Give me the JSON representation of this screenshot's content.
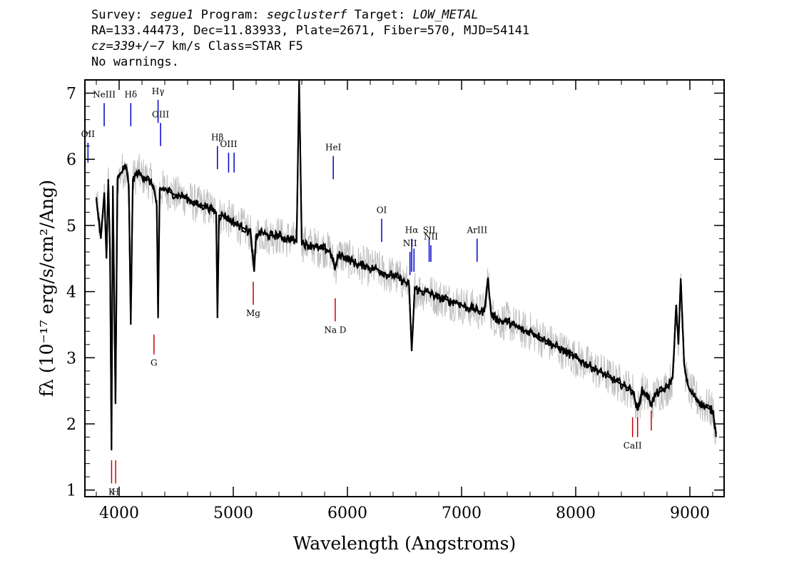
{
  "header": {
    "line1": {
      "survey_label": "Survey:",
      "survey": "segue1",
      "program_label": "Program:",
      "program": "segclusterf",
      "target_label": "Target:",
      "target": "LOW_METAL"
    },
    "line2": "RA=133.44473, Dec=11.83933, Plate=2671, Fiber=570, MJD=54141",
    "line3": {
      "cz": "cz=339+/−7",
      "rest": " km/s Class=STAR F5"
    },
    "line4": "No warnings."
  },
  "chart_data": {
    "type": "line",
    "title": "",
    "xlabel": "Wavelength (Angstroms)",
    "ylabel": "fλ (10⁻¹⁷ erg/s/cm²/Ang)",
    "xlim": [
      3700,
      9300
    ],
    "ylim": [
      0.9,
      7.2
    ],
    "x_ticks": [
      4000,
      5000,
      6000,
      7000,
      8000,
      9000
    ],
    "y_ticks": [
      1,
      2,
      3,
      4,
      5,
      6,
      7
    ],
    "grid": false,
    "series": [
      {
        "color": "#000000",
        "points": [
          [
            3800,
            5.4
          ],
          [
            3840,
            4.8
          ],
          [
            3870,
            5.5
          ],
          [
            3889,
            4.5
          ],
          [
            3905,
            5.7
          ],
          [
            3920,
            4.6
          ],
          [
            3933,
            1.6
          ],
          [
            3945,
            5.6
          ],
          [
            3968,
            2.3
          ],
          [
            3985,
            5.7
          ],
          [
            4020,
            5.8
          ],
          [
            4060,
            5.9
          ],
          [
            4085,
            5.6
          ],
          [
            4102,
            3.5
          ],
          [
            4120,
            5.7
          ],
          [
            4160,
            5.8
          ],
          [
            4200,
            5.75
          ],
          [
            4250,
            5.7
          ],
          [
            4300,
            5.6
          ],
          [
            4330,
            5.3
          ],
          [
            4341,
            3.6
          ],
          [
            4355,
            5.55
          ],
          [
            4400,
            5.55
          ],
          [
            4450,
            5.5
          ],
          [
            4500,
            5.45
          ],
          [
            4550,
            5.45
          ],
          [
            4600,
            5.4
          ],
          [
            4650,
            5.35
          ],
          [
            4700,
            5.3
          ],
          [
            4750,
            5.3
          ],
          [
            4800,
            5.25
          ],
          [
            4850,
            5.2
          ],
          [
            4861,
            3.6
          ],
          [
            4875,
            5.15
          ],
          [
            4920,
            5.15
          ],
          [
            4960,
            5.1
          ],
          [
            5000,
            5.05
          ],
          [
            5050,
            5.0
          ],
          [
            5100,
            4.95
          ],
          [
            5150,
            4.9
          ],
          [
            5183,
            4.3
          ],
          [
            5200,
            4.85
          ],
          [
            5250,
            4.9
          ],
          [
            5300,
            4.85
          ],
          [
            5350,
            4.85
          ],
          [
            5400,
            4.85
          ],
          [
            5450,
            4.8
          ],
          [
            5500,
            4.8
          ],
          [
            5555,
            4.75
          ],
          [
            5577,
            7.2
          ],
          [
            5600,
            4.75
          ],
          [
            5650,
            4.7
          ],
          [
            5700,
            4.7
          ],
          [
            5750,
            4.65
          ],
          [
            5800,
            4.65
          ],
          [
            5850,
            4.6
          ],
          [
            5893,
            4.35
          ],
          [
            5920,
            4.55
          ],
          [
            5950,
            4.55
          ],
          [
            6000,
            4.5
          ],
          [
            6050,
            4.45
          ],
          [
            6100,
            4.4
          ],
          [
            6150,
            4.4
          ],
          [
            6200,
            4.35
          ],
          [
            6250,
            4.35
          ],
          [
            6300,
            4.3
          ],
          [
            6350,
            4.25
          ],
          [
            6400,
            4.25
          ],
          [
            6450,
            4.2
          ],
          [
            6500,
            4.15
          ],
          [
            6540,
            4.1
          ],
          [
            6563,
            3.1
          ],
          [
            6590,
            4.05
          ],
          [
            6650,
            4.0
          ],
          [
            6700,
            4.0
          ],
          [
            6750,
            3.95
          ],
          [
            6800,
            3.9
          ],
          [
            6850,
            3.9
          ],
          [
            6900,
            3.85
          ],
          [
            6950,
            3.85
          ],
          [
            7000,
            3.8
          ],
          [
            7050,
            3.75
          ],
          [
            7100,
            3.75
          ],
          [
            7150,
            3.7
          ],
          [
            7200,
            3.7
          ],
          [
            7230,
            4.2
          ],
          [
            7260,
            3.65
          ],
          [
            7300,
            3.6
          ],
          [
            7350,
            3.55
          ],
          [
            7400,
            3.55
          ],
          [
            7450,
            3.5
          ],
          [
            7500,
            3.45
          ],
          [
            7550,
            3.4
          ],
          [
            7600,
            3.4
          ],
          [
            7650,
            3.35
          ],
          [
            7700,
            3.3
          ],
          [
            7750,
            3.25
          ],
          [
            7800,
            3.2
          ],
          [
            7850,
            3.15
          ],
          [
            7900,
            3.1
          ],
          [
            7950,
            3.05
          ],
          [
            8000,
            3.0
          ],
          [
            8050,
            2.95
          ],
          [
            8100,
            2.9
          ],
          [
            8150,
            2.85
          ],
          [
            8200,
            2.8
          ],
          [
            8250,
            2.75
          ],
          [
            8300,
            2.7
          ],
          [
            8350,
            2.65
          ],
          [
            8400,
            2.6
          ],
          [
            8450,
            2.55
          ],
          [
            8500,
            2.5
          ],
          [
            8542,
            2.2
          ],
          [
            8580,
            2.5
          ],
          [
            8620,
            2.45
          ],
          [
            8662,
            2.3
          ],
          [
            8700,
            2.45
          ],
          [
            8750,
            2.5
          ],
          [
            8800,
            2.55
          ],
          [
            8850,
            2.7
          ],
          [
            8880,
            3.8
          ],
          [
            8900,
            3.2
          ],
          [
            8920,
            4.2
          ],
          [
            8950,
            2.9
          ],
          [
            8980,
            2.6
          ],
          [
            9000,
            2.5
          ],
          [
            9050,
            2.4
          ],
          [
            9100,
            2.3
          ],
          [
            9150,
            2.25
          ],
          [
            9200,
            2.2
          ],
          [
            9230,
            1.85
          ]
        ]
      },
      {
        "color": "#c0c0c0",
        "band_halfwidth": 0.3
      }
    ],
    "emission_lines": [
      {
        "label": "OII",
        "x": 3727,
        "y_bottom": 5.95,
        "y_top": 6.25,
        "color": "#0000cc"
      },
      {
        "label": "NeIII",
        "x": 3869,
        "y_bottom": 6.5,
        "y_top": 6.85,
        "color": "#0000cc"
      },
      {
        "label": "Hδ",
        "x": 4102,
        "y_bottom": 6.5,
        "y_top": 6.85,
        "color": "#0000cc"
      },
      {
        "label": "Hγ",
        "x": 4341,
        "y_bottom": 6.55,
        "y_top": 6.9,
        "color": "#0000cc"
      },
      {
        "label": "OIII",
        "x": 4363,
        "y_bottom": 6.2,
        "y_top": 6.55,
        "color": "#0000cc"
      },
      {
        "label": "Hβ",
        "x": 4861,
        "y_bottom": 5.85,
        "y_top": 6.2,
        "color": "#0000cc"
      },
      {
        "label": "OIII",
        "x": 4959,
        "y_bottom": 5.8,
        "y_top": 6.1,
        "color": "#0000cc"
      },
      {
        "label": "",
        "x": 5007,
        "y_bottom": 5.8,
        "y_top": 6.1,
        "color": "#0000cc"
      },
      {
        "label": "HeI",
        "x": 5876,
        "y_bottom": 5.7,
        "y_top": 6.05,
        "color": "#0000cc"
      },
      {
        "label": "OI",
        "x": 6300,
        "y_bottom": 4.75,
        "y_top": 5.1,
        "color": "#0000cc"
      },
      {
        "label": "NII",
        "x": 6548,
        "y_bottom": 4.25,
        "y_top": 4.6,
        "color": "#0000cc"
      },
      {
        "label": "Hα",
        "x": 6563,
        "y_bottom": 4.3,
        "y_top": 4.8,
        "color": "#0000cc"
      },
      {
        "label": "",
        "x": 6583,
        "y_bottom": 4.3,
        "y_top": 4.65,
        "color": "#0000cc"
      },
      {
        "label": "SII",
        "x": 6716,
        "y_bottom": 4.45,
        "y_top": 4.8,
        "color": "#0000cc"
      },
      {
        "label": "NII",
        "x": 6731,
        "y_bottom": 4.45,
        "y_top": 4.7,
        "color": "#0000cc"
      },
      {
        "label": "ArIII",
        "x": 7136,
        "y_bottom": 4.45,
        "y_top": 4.8,
        "color": "#0000cc"
      }
    ],
    "absorption_lines": [
      {
        "label": "Mg",
        "x": 5175,
        "y_bottom": 3.8,
        "y_top": 4.15,
        "color": "#cc0000"
      },
      {
        "label": "Na D",
        "x": 5893,
        "y_bottom": 3.55,
        "y_top": 3.9,
        "color": "#cc0000"
      },
      {
        "label": "G",
        "x": 4305,
        "y_bottom": 3.05,
        "y_top": 3.35,
        "color": "#cc0000"
      },
      {
        "label": "K",
        "x": 3934,
        "y_bottom": 1.1,
        "y_top": 1.45,
        "color": "#cc0000"
      },
      {
        "label": "H",
        "x": 3969,
        "y_bottom": 1.1,
        "y_top": 1.45,
        "color": "#cc0000"
      },
      {
        "label": "CaII",
        "x": 8498,
        "y_bottom": 1.8,
        "y_top": 2.1,
        "color": "#cc0000"
      },
      {
        "label": "",
        "x": 8542,
        "y_bottom": 1.8,
        "y_top": 2.1,
        "color": "#cc0000"
      },
      {
        "label": "",
        "x": 8662,
        "y_bottom": 1.9,
        "y_top": 2.2,
        "color": "#cc0000"
      }
    ]
  }
}
